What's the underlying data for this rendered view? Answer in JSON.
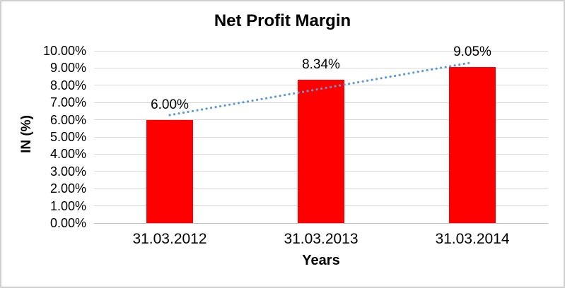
{
  "chart_data": {
    "type": "bar",
    "title": "Net Profit Margin",
    "xlabel": "Years",
    "ylabel": "IN (%)",
    "categories": [
      "31.03.2012",
      "31.03.2013",
      "31.03.2014"
    ],
    "values": [
      6.0,
      8.34,
      9.05
    ],
    "data_labels": [
      "6.00%",
      "8.34%",
      "9.05%"
    ],
    "y_ticks": [
      "10.00%",
      "9.00%",
      "8.00%",
      "7.00%",
      "6.00%",
      "5.00%",
      "4.00%",
      "3.00%",
      "2.00%",
      "1.00%",
      "0.00%"
    ],
    "ylim": [
      0,
      10
    ],
    "y_tick_step": 1,
    "grid": true,
    "legend": "none",
    "bar_color": "#FF0000",
    "gridline_color": "#D9D9D9",
    "axis_line_color": "#BFBFBF",
    "text_color": "#000000",
    "trendline": {
      "type": "linear",
      "style": "dotted",
      "color": "#5B9BD5",
      "start_value": 6.27,
      "end_value": 9.33
    }
  }
}
